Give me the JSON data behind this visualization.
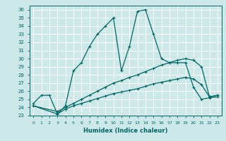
{
  "xlabel": "Humidex (Indice chaleur)",
  "background_color": "#cce8e8",
  "grid_color": "#ffffff",
  "line_color": "#006666",
  "xlim": [
    -0.5,
    23.5
  ],
  "ylim": [
    23,
    36.5
  ],
  "xticks": [
    0,
    1,
    2,
    3,
    4,
    5,
    6,
    7,
    8,
    9,
    10,
    11,
    12,
    13,
    14,
    15,
    16,
    17,
    18,
    19,
    20,
    21,
    22,
    23
  ],
  "yticks": [
    23,
    24,
    25,
    26,
    27,
    28,
    29,
    30,
    31,
    32,
    33,
    34,
    35,
    36
  ],
  "line1_x": [
    0,
    1,
    2,
    3,
    4,
    5,
    6,
    7,
    8,
    9,
    10,
    11,
    12,
    13,
    14,
    15,
    16,
    17,
    18,
    19,
    20,
    21,
    22,
    23
  ],
  "line1_y": [
    24.5,
    25.5,
    25.5,
    23.2,
    24.2,
    28.5,
    29.5,
    31.5,
    33.0,
    34.0,
    35.0,
    28.5,
    31.5,
    35.8,
    36.0,
    33.0,
    30.0,
    29.5,
    29.5,
    29.5,
    26.5,
    25.0,
    25.2,
    25.3
  ],
  "line2_x": [
    0,
    3,
    4,
    5,
    6,
    7,
    8,
    9,
    10,
    11,
    12,
    13,
    14,
    15,
    16,
    17,
    18,
    19,
    20,
    21,
    22,
    23
  ],
  "line2_y": [
    24.2,
    23.5,
    24.0,
    24.5,
    25.0,
    25.5,
    26.0,
    26.5,
    27.0,
    27.3,
    27.7,
    28.0,
    28.4,
    28.8,
    29.2,
    29.5,
    29.8,
    30.0,
    29.8,
    29.0,
    25.3,
    25.5
  ],
  "line3_x": [
    0,
    3,
    4,
    5,
    6,
    7,
    8,
    9,
    10,
    11,
    12,
    13,
    14,
    15,
    16,
    17,
    18,
    19,
    20,
    21,
    22,
    23
  ],
  "line3_y": [
    24.2,
    23.2,
    23.8,
    24.2,
    24.5,
    24.8,
    25.1,
    25.4,
    25.7,
    25.9,
    26.1,
    26.3,
    26.6,
    26.9,
    27.1,
    27.3,
    27.5,
    27.7,
    27.5,
    26.8,
    25.3,
    25.5
  ]
}
